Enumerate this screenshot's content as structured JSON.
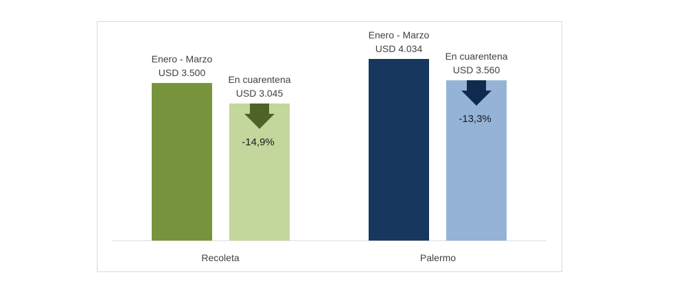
{
  "chart_data": {
    "type": "bar",
    "categories": [
      "Recoleta",
      "Palermo"
    ],
    "series": [
      {
        "name": "Enero - Marzo",
        "values": [
          3500,
          4034
        ],
        "value_labels": [
          "USD 3.500",
          "USD 4.034"
        ]
      },
      {
        "name": "En cuarentena",
        "values": [
          3045,
          3560
        ],
        "value_labels": [
          "USD 3.045",
          "USD 3.560"
        ]
      }
    ],
    "changes": [
      "-14,9%",
      "-13,3%"
    ],
    "ylim": [
      0,
      4034
    ],
    "grid": false,
    "legend": "none",
    "colors": {
      "Recoleta": [
        "#77933c",
        "#c3d69b"
      ],
      "Palermo": [
        "#17375e",
        "#95b3d7"
      ],
      "arrows": [
        "#4f6228",
        "#0f2a4d"
      ]
    }
  }
}
